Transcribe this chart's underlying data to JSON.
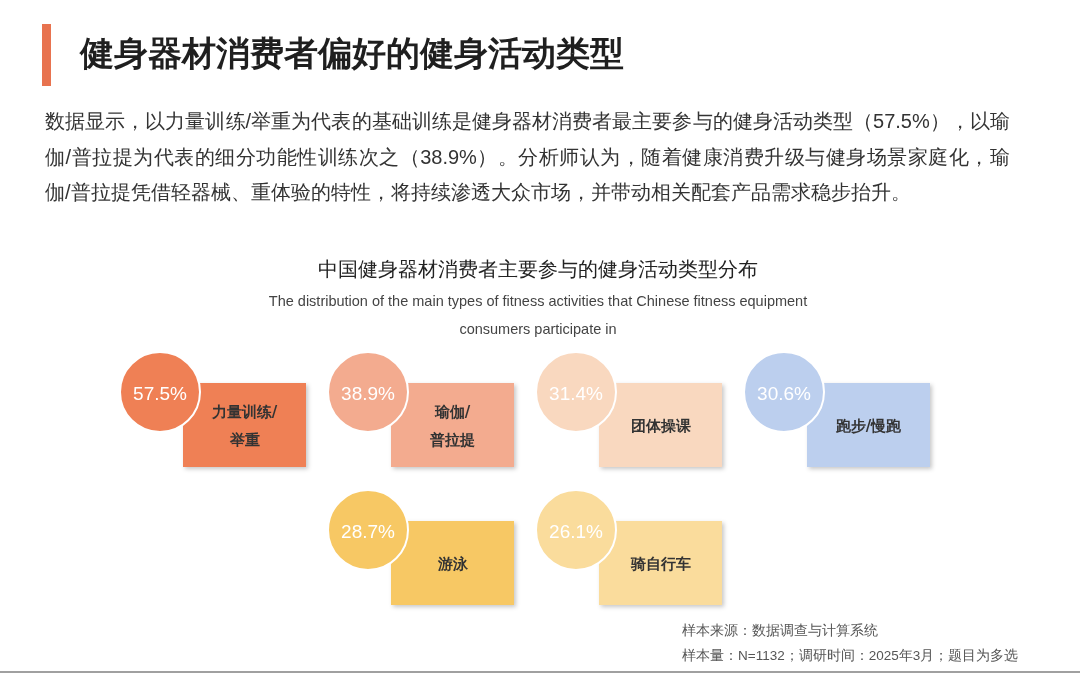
{
  "chart_data": [
    {
      "type": "other",
      "title": "健身器材消费者偏好的健身活动类型",
      "annotations": [
        "数据显示，以力量训练/举重为代表的基础训练是健身器材消费者最主要参与的健身活动类型（57.5%），以瑜伽/普拉提为代表的细分功能性训练次之（38.9%）。分析师认为，随着健康消费升级与健身场景家庭化，瑜伽/普拉提凭借轻器械、重体验的特性，将持续渗透大众市场，并带动相关配套产品需求稳步抬升。"
      ]
    },
    {
      "type": "other",
      "title": "中国健身器材消费者主要参与的健身活动类型分布",
      "subtitle": "The distribution of the main types of fitness activities that Chinese fitness equipment consumers participate in",
      "categories": [
        "力量训练/举重",
        "瑜伽/普拉提",
        "团体操课",
        "跑步/慢跑",
        "游泳",
        "骑自行车"
      ],
      "values": [
        57.5,
        38.9,
        31.4,
        30.6,
        28.7,
        26.1
      ],
      "value_labels": [
        "57.5%",
        "38.9%",
        "31.4%",
        "30.6%",
        "28.7%",
        "26.1%"
      ],
      "colors": [
        "#ef8055",
        "#f3ab8f",
        "#f9d8bf",
        "#bccfee",
        "#f7c864",
        "#fadc9c"
      ],
      "annotations": [
        "样本来源：数据调查与计算系统",
        "样本量：N=1132；调研时间：2025年3月；题目为多选"
      ]
    }
  ]
}
